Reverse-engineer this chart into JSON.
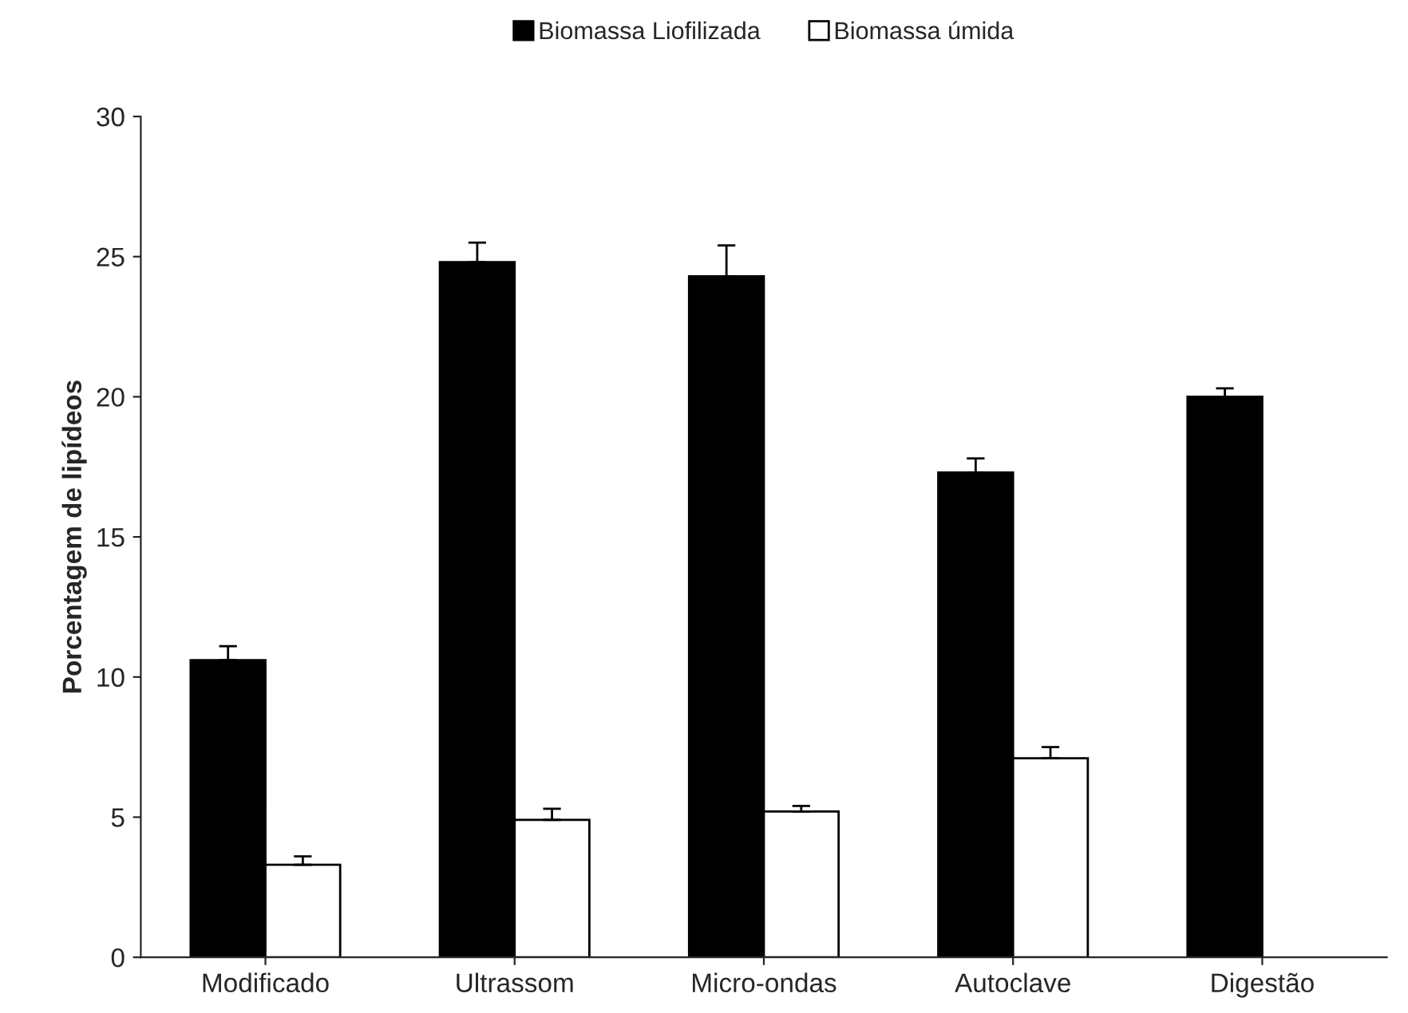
{
  "chart_data": {
    "type": "bar",
    "ylabel": "Porcentagem de lipídeos",
    "categories": [
      "Modificado",
      "Ultrassom",
      "Micro-ondas",
      "Autoclave",
      "Digestão"
    ],
    "series": [
      {
        "name": "Biomassa Liofilizada",
        "color": "#000000",
        "values": [
          10.6,
          24.8,
          24.3,
          17.3,
          20.0
        ],
        "errors": [
          [
            10.6,
            11.1
          ],
          [
            24.8,
            25.5
          ],
          [
            24.3,
            25.4
          ],
          [
            17.3,
            17.8
          ],
          [
            20.0,
            20.3
          ]
        ]
      },
      {
        "name": "Biomassa úmida",
        "color": "#ffffff",
        "values": [
          3.3,
          4.9,
          5.2,
          7.1,
          null
        ],
        "errors": [
          [
            3.3,
            3.6
          ],
          [
            4.9,
            5.3
          ],
          [
            5.2,
            5.4
          ],
          [
            7.1,
            7.5
          ],
          null
        ]
      }
    ],
    "ylim": [
      0,
      30
    ],
    "yticks": [
      0,
      5,
      10,
      15,
      20,
      25,
      30
    ],
    "grid": false,
    "legend": "top"
  }
}
